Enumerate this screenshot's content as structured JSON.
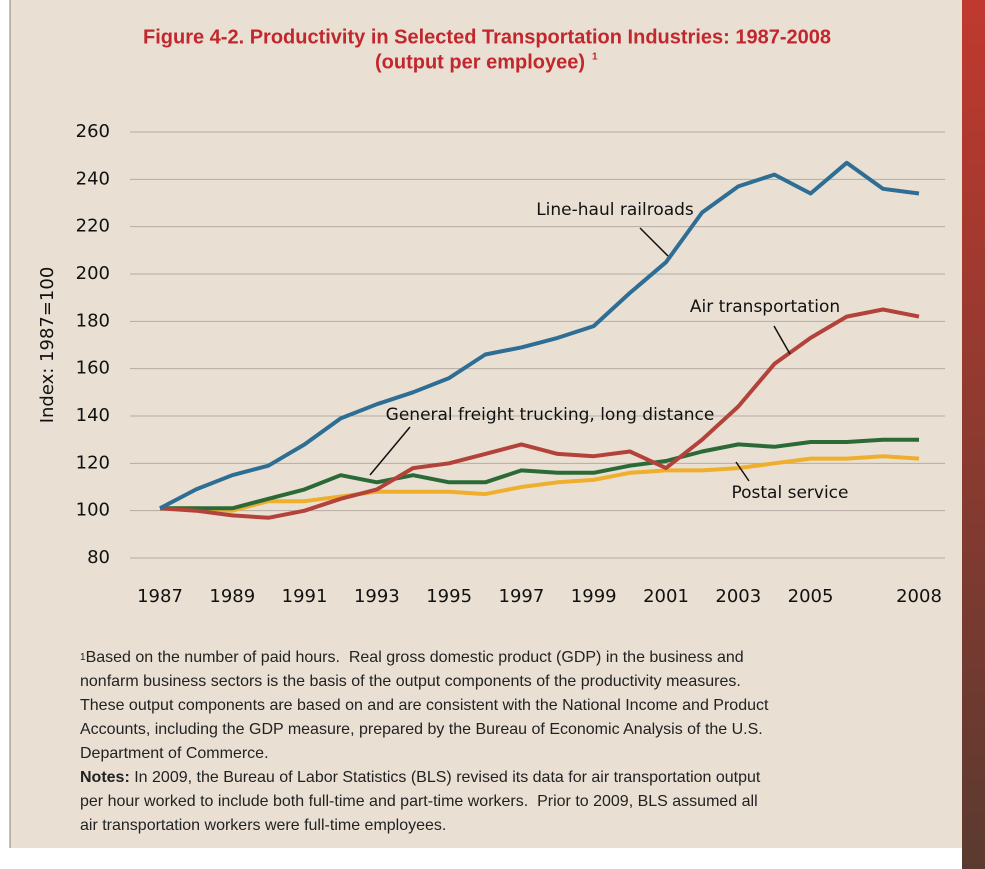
{
  "chart_data": {
    "type": "line",
    "title": "Figure 4-2.  Productivity in Selected Transportation Industries: 1987-2008",
    "subtitle": "(output per employee)",
    "subtitle_note_mark": "1",
    "y_label": "Index: 1987=100",
    "x": [
      1987,
      1988,
      1989,
      1990,
      1991,
      1992,
      1993,
      1994,
      1995,
      1996,
      1997,
      1998,
      1999,
      2000,
      2001,
      2002,
      2003,
      2004,
      2005,
      2006,
      2007,
      2008
    ],
    "xlim": [
      1987,
      2008
    ],
    "xticks": [
      1987,
      1989,
      1991,
      1993,
      1995,
      1997,
      1999,
      2001,
      2003,
      2005,
      2008
    ],
    "ylim": [
      80,
      260
    ],
    "yticks": [
      80,
      100,
      120,
      140,
      160,
      180,
      200,
      220,
      240,
      260
    ],
    "grid": true,
    "series": [
      {
        "name": "Line-haul railroads",
        "color": "#2f6e94",
        "values": [
          101,
          109,
          115,
          119,
          128,
          139,
          145,
          150,
          156,
          166,
          169,
          173,
          178,
          192,
          205,
          226,
          237,
          242,
          234,
          247,
          236,
          234
        ]
      },
      {
        "name": "Air transportation",
        "color": "#b3423b",
        "values": [
          101,
          100,
          98,
          97,
          100,
          105,
          109,
          118,
          120,
          124,
          128,
          124,
          123,
          125,
          118,
          130,
          144,
          162,
          173,
          182,
          185,
          182
        ]
      },
      {
        "name": "General freight trucking, long distance",
        "color": "#2b6a36",
        "values": [
          101,
          101,
          101,
          105,
          109,
          115,
          112,
          115,
          112,
          112,
          117,
          116,
          116,
          119,
          121,
          125,
          128,
          127,
          129,
          129,
          130,
          130
        ]
      },
      {
        "name": "Postal service",
        "color": "#efaf2c",
        "values": [
          101,
          101,
          100,
          104,
          104,
          106,
          108,
          108,
          108,
          107,
          110,
          112,
          113,
          116,
          117,
          117,
          118,
          120,
          122,
          122,
          123,
          122
        ]
      }
    ]
  },
  "footnote": {
    "mark": "1",
    "lines": [
      "Based on the number of paid hours.  Real gross domestic product (GDP) in the business and",
      "nonfarm business sectors is the basis of the output components of the productivity measures.",
      "These output components are based on and are consistent with the National Income and Product",
      "Accounts, including the GDP measure, prepared by the Bureau of Economic Analysis of the U.S.",
      "Department of Commerce."
    ]
  },
  "notes": {
    "label": "Notes:",
    "lines": [
      " In 2009, the Bureau of Labor Statistics (BLS) revised its data for air transportation output",
      "per hour worked to include both full-time and part-time workers.  Prior to 2009, BLS assumed all",
      "air transportation workers were full-time employees."
    ]
  }
}
